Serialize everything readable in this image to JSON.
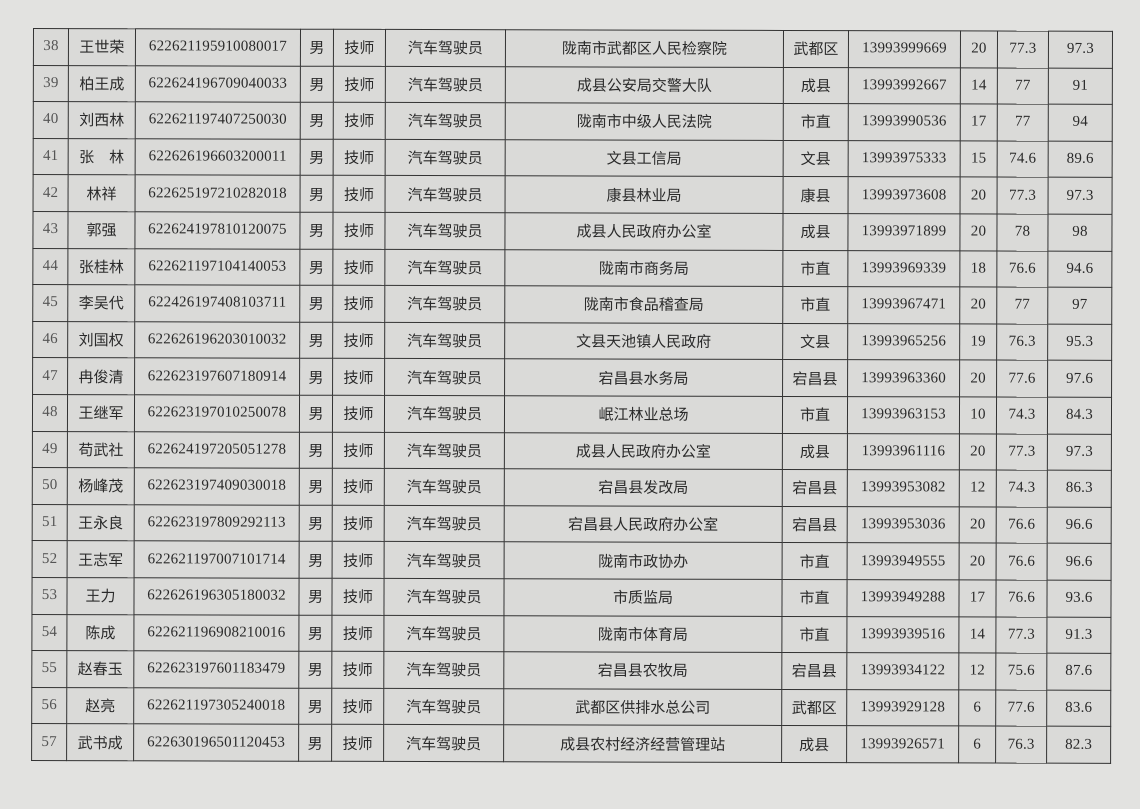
{
  "rows": [
    [
      "38",
      "王世荣",
      "622621195910080017",
      "男",
      "技师",
      "汽车驾驶员",
      "陇南市武都区人民检察院",
      "武都区",
      "13993999669",
      "20",
      "77.3",
      "97.3"
    ],
    [
      "39",
      "柏王成",
      "622624196709040033",
      "男",
      "技师",
      "汽车驾驶员",
      "成县公安局交警大队",
      "成县",
      "13993992667",
      "14",
      "77",
      "91"
    ],
    [
      "40",
      "刘西林",
      "622621197407250030",
      "男",
      "技师",
      "汽车驾驶员",
      "陇南市中级人民法院",
      "市直",
      "13993990536",
      "17",
      "77",
      "94"
    ],
    [
      "41",
      "张　林",
      "622626196603200011",
      "男",
      "技师",
      "汽车驾驶员",
      "文县工信局",
      "文县",
      "13993975333",
      "15",
      "74.6",
      "89.6"
    ],
    [
      "42",
      "林祥",
      "622625197210282018",
      "男",
      "技师",
      "汽车驾驶员",
      "康县林业局",
      "康县",
      "13993973608",
      "20",
      "77.3",
      "97.3"
    ],
    [
      "43",
      "郭强",
      "622624197810120075",
      "男",
      "技师",
      "汽车驾驶员",
      "成县人民政府办公室",
      "成县",
      "13993971899",
      "20",
      "78",
      "98"
    ],
    [
      "44",
      "张桂林",
      "622621197104140053",
      "男",
      "技师",
      "汽车驾驶员",
      "陇南市商务局",
      "市直",
      "13993969339",
      "18",
      "76.6",
      "94.6"
    ],
    [
      "45",
      "李吴代",
      "622426197408103711",
      "男",
      "技师",
      "汽车驾驶员",
      "陇南市食品稽查局",
      "市直",
      "13993967471",
      "20",
      "77",
      "97"
    ],
    [
      "46",
      "刘国权",
      "622626196203010032",
      "男",
      "技师",
      "汽车驾驶员",
      "文县天池镇人民政府",
      "文县",
      "13993965256",
      "19",
      "76.3",
      "95.3"
    ],
    [
      "47",
      "冉俊清",
      "622623197607180914",
      "男",
      "技师",
      "汽车驾驶员",
      "宕昌县水务局",
      "宕昌县",
      "13993963360",
      "20",
      "77.6",
      "97.6"
    ],
    [
      "48",
      "王继军",
      "622623197010250078",
      "男",
      "技师",
      "汽车驾驶员",
      "岷江林业总场",
      "市直",
      "13993963153",
      "10",
      "74.3",
      "84.3"
    ],
    [
      "49",
      "苟武社",
      "622624197205051278",
      "男",
      "技师",
      "汽车驾驶员",
      "成县人民政府办公室",
      "成县",
      "13993961116",
      "20",
      "77.3",
      "97.3"
    ],
    [
      "50",
      "杨峰茂",
      "622623197409030018",
      "男",
      "技师",
      "汽车驾驶员",
      "宕昌县发改局",
      "宕昌县",
      "13993953082",
      "12",
      "74.3",
      "86.3"
    ],
    [
      "51",
      "王永良",
      "622623197809292113",
      "男",
      "技师",
      "汽车驾驶员",
      "宕昌县人民政府办公室",
      "宕昌县",
      "13993953036",
      "20",
      "76.6",
      "96.6"
    ],
    [
      "52",
      "王志军",
      "622621197007101714",
      "男",
      "技师",
      "汽车驾驶员",
      "陇南市政协办",
      "市直",
      "13993949555",
      "20",
      "76.6",
      "96.6"
    ],
    [
      "53",
      "王力",
      "622626196305180032",
      "男",
      "技师",
      "汽车驾驶员",
      "市质监局",
      "市直",
      "13993949288",
      "17",
      "76.6",
      "93.6"
    ],
    [
      "54",
      "陈成",
      "622621196908210016",
      "男",
      "技师",
      "汽车驾驶员",
      "陇南市体育局",
      "市直",
      "13993939516",
      "14",
      "77.3",
      "91.3"
    ],
    [
      "55",
      "赵春玉",
      "622623197601183479",
      "男",
      "技师",
      "汽车驾驶员",
      "宕昌县农牧局",
      "宕昌县",
      "13993934122",
      "12",
      "75.6",
      "87.6"
    ],
    [
      "56",
      "赵亮",
      "622621197305240018",
      "男",
      "技师",
      "汽车驾驶员",
      "武都区供排水总公司",
      "武都区",
      "13993929128",
      "6",
      "77.6",
      "83.6"
    ],
    [
      "57",
      "武书成",
      "622630196501120453",
      "男",
      "技师",
      "汽车驾驶员",
      "成县农村经济经营管理站",
      "成县",
      "13993926571",
      "6",
      "76.3",
      "82.3"
    ]
  ]
}
